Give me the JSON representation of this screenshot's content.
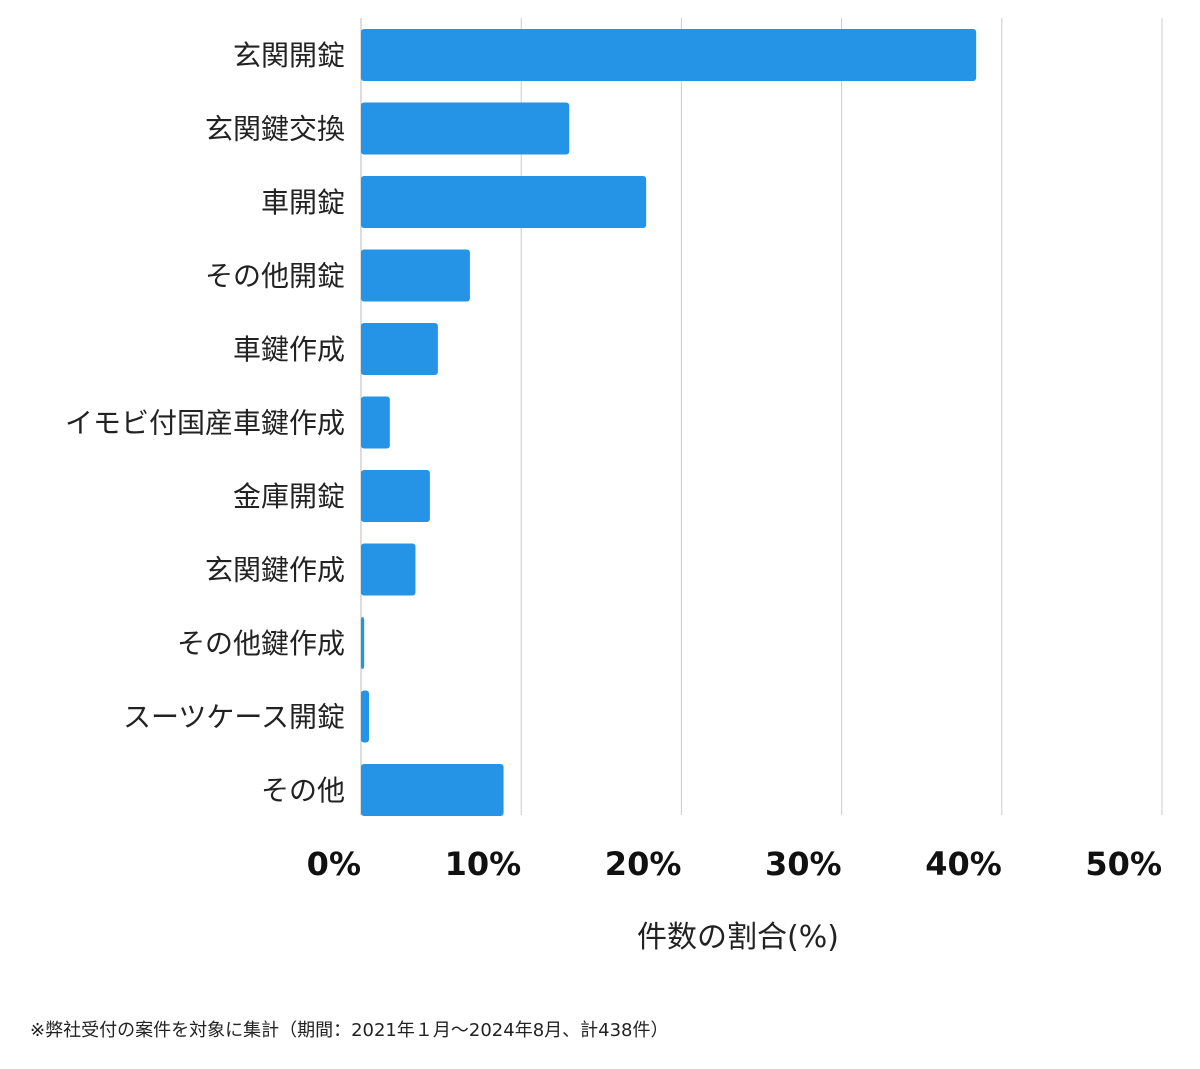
{
  "chart_data": {
    "type": "bar",
    "orientation": "horizontal",
    "categories": [
      "玄関開錠",
      "玄関鍵交換",
      "車開錠",
      "その他開錠",
      "車鍵作成",
      "イモビ付国産車鍵作成",
      "金庫開錠",
      "玄関鍵作成",
      "その他鍵作成",
      "スーツケース開錠",
      "その他"
    ],
    "values": [
      38.4,
      13.0,
      17.8,
      6.8,
      4.8,
      1.8,
      4.3,
      3.4,
      0.2,
      0.5,
      8.9
    ],
    "xlabel": "件数の割合(%)",
    "ylabel": "",
    "xlim": [
      0,
      50
    ],
    "xticks": [
      0,
      10,
      20,
      30,
      40,
      50
    ],
    "xtick_labels": [
      "0%",
      "10%",
      "20%",
      "30%",
      "40%",
      "50%"
    ],
    "grid": "vertical",
    "bar_color": "#2594e6",
    "grid_color": "#cccccc"
  },
  "footnote": "※弊社受付の案件を対象に集計（期間：2021年１月〜2024年8月、計438件）"
}
